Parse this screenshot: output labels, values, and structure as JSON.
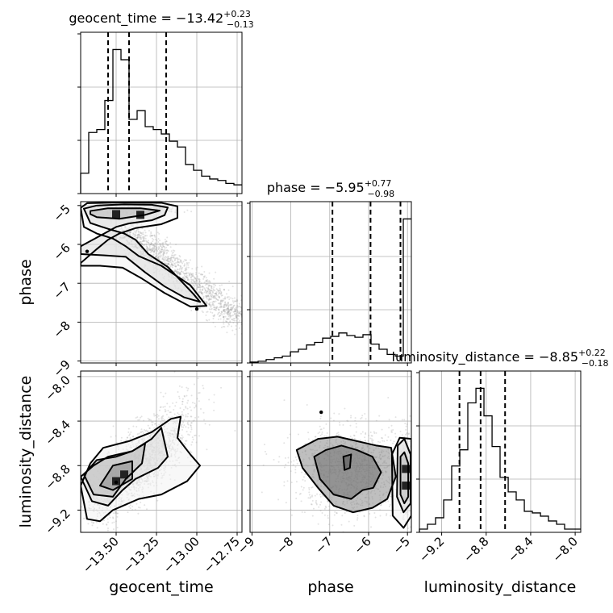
{
  "chart_data": {
    "type": "corner",
    "parameters": [
      {
        "key": "geocent_time",
        "axis_label": "geocent_time",
        "title": {
          "text": "geocent_time = −13.42",
          "sup": "+0.23",
          "sub": "−0.13"
        },
        "range": [
          -13.72,
          -12.72
        ],
        "ticks": [
          -13.5,
          -13.25,
          -13.0,
          -12.75
        ],
        "tick_labels": [
          "−13.50",
          "−13.25",
          "−13.00",
          "−12.75"
        ],
        "quantiles": [
          -13.55,
          -13.42,
          -13.19
        ],
        "histogram": {
          "edges": [
            -13.72,
            -13.67,
            -13.62,
            -13.57,
            -13.52,
            -13.47,
            -13.42,
            -13.37,
            -13.32,
            -13.27,
            -13.22,
            -13.17,
            -13.12,
            -13.07,
            -13.02,
            -12.97,
            -12.92,
            -12.87,
            -12.82,
            -12.77,
            -12.72
          ],
          "counts": [
            14,
            42,
            44,
            64,
            99,
            92,
            51,
            57,
            46,
            44,
            41,
            36,
            32,
            20,
            16,
            12,
            10,
            9,
            7,
            6
          ]
        }
      },
      {
        "key": "phase",
        "axis_label": "phase",
        "title": {
          "text": "phase = −5.95",
          "sup": "+0.77",
          "sub": "−0.98"
        },
        "range": [
          -9.05,
          -4.9
        ],
        "ticks": [
          -9,
          -8,
          -7,
          -6,
          -5
        ],
        "tick_labels": [
          "−9",
          "−8",
          "−7",
          "−6",
          "−5"
        ],
        "quantiles": [
          -6.93,
          -5.95,
          -5.18
        ],
        "histogram": {
          "edges": [
            -9.05,
            -8.842,
            -8.635,
            -8.427,
            -8.22,
            -8.012,
            -7.805,
            -7.597,
            -7.39,
            -7.182,
            -6.975,
            -6.767,
            -6.56,
            -6.352,
            -6.145,
            -5.937,
            -5.73,
            -5.522,
            -5.315,
            -5.107,
            -4.9
          ],
          "counts": [
            1,
            2,
            4,
            6,
            8,
            13,
            16,
            21,
            24,
            29,
            31,
            35,
            32,
            30,
            33,
            22,
            16,
            10,
            8,
            168
          ]
        }
      },
      {
        "key": "luminosity_distance",
        "axis_label": "luminosity_distance",
        "title": {
          "text": "luminosity_distance = −8.85",
          "sup": "+0.22",
          "sub": "−0.18"
        },
        "range": [
          -9.4,
          -7.95
        ],
        "ticks": [
          -9.2,
          -8.8,
          -8.4,
          -8.0
        ],
        "tick_labels": [
          "−9.2",
          "−8.8",
          "−8.4",
          "−8.0"
        ],
        "quantiles": [
          -9.04,
          -8.85,
          -8.63
        ],
        "histogram": {
          "edges": [
            -9.4,
            -9.328,
            -9.255,
            -9.182,
            -9.11,
            -9.037,
            -8.965,
            -8.892,
            -8.82,
            -8.747,
            -8.675,
            -8.602,
            -8.53,
            -8.457,
            -8.385,
            -8.312,
            -8.24,
            -8.167,
            -8.095,
            -8.022,
            -7.95
          ],
          "counts": [
            2,
            5,
            9,
            20,
            41,
            51,
            80,
            89,
            72,
            53,
            34,
            25,
            20,
            13,
            12,
            10,
            7,
            5,
            2,
            2
          ]
        }
      }
    ],
    "pairs": [
      {
        "x": "geocent_time",
        "y": "phase",
        "contours": [
          [
            [
              -13.66,
              -5.14
            ],
            [
              -13.55,
              -5.07
            ],
            [
              -13.35,
              -5.07
            ],
            [
              -13.23,
              -5.13
            ],
            [
              -13.32,
              -5.24
            ],
            [
              -13.48,
              -5.34
            ],
            [
              -13.62,
              -5.3
            ],
            [
              -13.66,
              -5.22
            ]
          ],
          [
            [
              -13.72,
              -6.05
            ],
            [
              -13.6,
              -5.78
            ],
            [
              -13.5,
              -5.55
            ],
            [
              -13.42,
              -5.46
            ],
            [
              -13.28,
              -5.38
            ],
            [
              -13.2,
              -5.25
            ],
            [
              -13.18,
              -5.05
            ],
            [
              -13.28,
              -4.98
            ],
            [
              -13.45,
              -4.97
            ],
            [
              -13.62,
              -5.0
            ],
            [
              -13.7,
              -5.08
            ],
            [
              -13.66,
              -5.45
            ],
            [
              -13.55,
              -5.6
            ],
            [
              -13.45,
              -5.72
            ],
            [
              -13.38,
              -5.88
            ],
            [
              -13.3,
              -6.25
            ],
            [
              -13.18,
              -6.58
            ],
            [
              -13.02,
              -7.28
            ],
            [
              -12.98,
              -7.48
            ],
            [
              -13.08,
              -7.36
            ],
            [
              -13.2,
              -7.08
            ],
            [
              -13.32,
              -6.72
            ],
            [
              -13.44,
              -6.32
            ],
            [
              -13.58,
              -6.28
            ],
            [
              -13.72,
              -6.25
            ]
          ],
          [
            [
              -13.72,
              -6.48
            ],
            [
              -13.62,
              -6.12
            ],
            [
              -13.55,
              -5.88
            ],
            [
              -13.48,
              -5.72
            ],
            [
              -13.38,
              -5.58
            ],
            [
              -13.22,
              -5.48
            ],
            [
              -13.12,
              -5.32
            ],
            [
              -13.12,
              -5.02
            ],
            [
              -13.22,
              -4.93
            ],
            [
              -13.45,
              -4.92
            ],
            [
              -13.68,
              -4.94
            ],
            [
              -13.72,
              -5.06
            ],
            [
              -13.7,
              -5.55
            ],
            [
              -13.62,
              -5.72
            ],
            [
              -13.52,
              -5.85
            ],
            [
              -13.44,
              -6.05
            ],
            [
              -13.36,
              -6.3
            ],
            [
              -13.22,
              -6.55
            ],
            [
              -13.04,
              -7.05
            ],
            [
              -12.94,
              -7.58
            ],
            [
              -13.04,
              -7.6
            ],
            [
              -13.2,
              -7.25
            ],
            [
              -13.34,
              -6.88
            ],
            [
              -13.46,
              -6.6
            ],
            [
              -13.6,
              -6.55
            ],
            [
              -13.72,
              -6.55
            ]
          ]
        ],
        "peaks": [
          [
            -13.5,
            -5.22
          ],
          [
            -13.35,
            -5.24
          ]
        ],
        "markers": [
          [
            -13.68,
            -6.18
          ],
          [
            -13.0,
            -7.66
          ]
        ]
      },
      {
        "x": "geocent_time",
        "y": "luminosity_distance",
        "contours": [
          [
            [
              -13.6,
              -8.98
            ],
            [
              -13.52,
              -8.8
            ],
            [
              -13.4,
              -8.76
            ],
            [
              -13.4,
              -8.92
            ],
            [
              -13.52,
              -9.02
            ]
          ],
          [
            [
              -13.7,
              -8.88
            ],
            [
              -13.62,
              -8.75
            ],
            [
              -13.5,
              -8.72
            ],
            [
              -13.4,
              -8.67
            ],
            [
              -13.32,
              -8.6
            ],
            [
              -13.34,
              -8.78
            ],
            [
              -13.44,
              -8.92
            ],
            [
              -13.52,
              -9.08
            ],
            [
              -13.64,
              -9.06
            ]
          ],
          [
            [
              -13.72,
              -8.9
            ],
            [
              -13.64,
              -8.8
            ],
            [
              -13.55,
              -8.72
            ],
            [
              -13.4,
              -8.67
            ],
            [
              -13.28,
              -8.56
            ],
            [
              -13.22,
              -8.46
            ],
            [
              -13.18,
              -8.72
            ],
            [
              -13.24,
              -8.82
            ],
            [
              -13.38,
              -8.92
            ],
            [
              -13.46,
              -9.02
            ],
            [
              -13.55,
              -9.16
            ],
            [
              -13.65,
              -9.12
            ]
          ],
          [
            [
              -13.72,
              -8.98
            ],
            [
              -13.66,
              -8.78
            ],
            [
              -13.58,
              -8.64
            ],
            [
              -13.42,
              -8.58
            ],
            [
              -13.28,
              -8.5
            ],
            [
              -13.16,
              -8.38
            ],
            [
              -13.1,
              -8.36
            ],
            [
              -13.12,
              -8.55
            ],
            [
              -13.04,
              -8.7
            ],
            [
              -12.98,
              -8.8
            ],
            [
              -13.06,
              -8.94
            ],
            [
              -13.22,
              -9.06
            ],
            [
              -13.36,
              -9.1
            ],
            [
              -13.52,
              -9.2
            ],
            [
              -13.6,
              -9.3
            ],
            [
              -13.68,
              -9.28
            ]
          ]
        ],
        "peaks": [
          [
            -13.5,
            -8.94
          ],
          [
            -13.45,
            -8.88
          ]
        ],
        "markers": [
          [
            -13.5,
            -8.95
          ]
        ]
      },
      {
        "x": "phase",
        "y": "luminosity_distance",
        "contours": [
          [
            [
              -6.65,
              -8.72
            ],
            [
              -6.45,
              -8.7
            ],
            [
              -6.48,
              -8.82
            ],
            [
              -6.62,
              -8.84
            ]
          ],
          [
            [
              -7.4,
              -8.72
            ],
            [
              -7.1,
              -8.66
            ],
            [
              -6.7,
              -8.62
            ],
            [
              -6.3,
              -8.66
            ],
            [
              -5.9,
              -8.72
            ],
            [
              -5.68,
              -8.86
            ],
            [
              -5.88,
              -9.0
            ],
            [
              -6.15,
              -9.02
            ],
            [
              -6.45,
              -9.1
            ],
            [
              -6.9,
              -9.06
            ],
            [
              -7.25,
              -8.92
            ]
          ],
          [
            [
              -7.85,
              -8.66
            ],
            [
              -7.3,
              -8.56
            ],
            [
              -6.8,
              -8.54
            ],
            [
              -6.3,
              -8.58
            ],
            [
              -5.8,
              -8.62
            ],
            [
              -5.42,
              -8.64
            ],
            [
              -5.3,
              -8.9
            ],
            [
              -5.52,
              -9.1
            ],
            [
              -5.9,
              -9.18
            ],
            [
              -6.4,
              -9.22
            ],
            [
              -6.9,
              -9.16
            ],
            [
              -7.3,
              -9.0
            ],
            [
              -7.7,
              -8.82
            ]
          ],
          [
            [
              -5.18,
              -8.72
            ],
            [
              -5.08,
              -8.68
            ],
            [
              -4.98,
              -8.78
            ],
            [
              -4.98,
              -9.08
            ],
            [
              -5.08,
              -9.14
            ],
            [
              -5.18,
              -9.06
            ]
          ],
          [
            [
              -5.25,
              -8.62
            ],
            [
              -5.08,
              -8.56
            ],
            [
              -4.92,
              -8.7
            ],
            [
              -4.92,
              -9.14
            ],
            [
              -5.1,
              -9.22
            ],
            [
              -5.27,
              -9.08
            ]
          ],
          [
            [
              -5.4,
              -8.7
            ],
            [
              -5.2,
              -8.55
            ],
            [
              -4.9,
              -8.56
            ],
            [
              -4.9,
              -9.25
            ],
            [
              -5.1,
              -9.36
            ],
            [
              -5.38,
              -9.25
            ]
          ]
        ],
        "peaks": [
          [
            -5.04,
            -8.83
          ],
          [
            -5.04,
            -8.98
          ]
        ],
        "markers": [
          [
            -7.22,
            -8.32
          ]
        ]
      }
    ]
  }
}
